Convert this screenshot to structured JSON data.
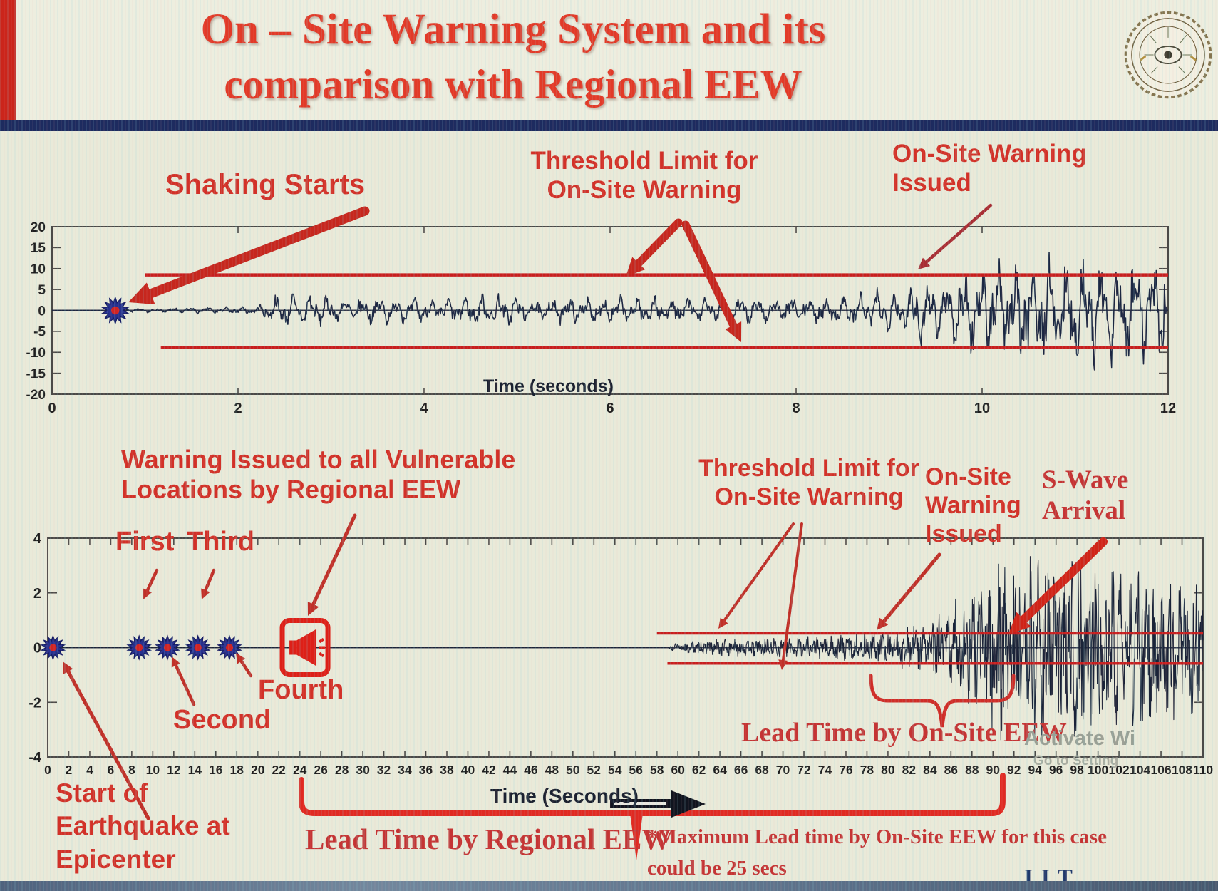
{
  "slide": {
    "title_line1": "On – Site Warning System and its",
    "title_line2": "comparison with Regional EEW",
    "brand": "I I T ROORKEE",
    "brand_squares": [
      "#1f3864",
      "#2e75b6",
      "#1e7145"
    ],
    "watermark_line1": "Activate Wi",
    "watermark_line2": "Go to Setting",
    "colors": {
      "title_red": "#e23a28",
      "annotation_red": "#d23128",
      "serif_red": "#c53434",
      "threshold_red": "#c81e1e",
      "waveform_navy": "#1c2742",
      "navy_bar": "#1d2b5f",
      "brand_navy": "#203a6d"
    }
  },
  "labels": {
    "shaking_starts": "Shaking Starts",
    "threshold_top_l1": "Threshold Limit for",
    "threshold_top_l2": "On-Site Warning",
    "onsite_top_l1": "On-Site Warning",
    "onsite_top_l2": "Issued",
    "time_top": "Time (seconds)",
    "warning_vuln_l1": "Warning Issued to all Vulnerable",
    "warning_vuln_l2": "Locations by Regional EEW",
    "first": "First",
    "second": "Second",
    "third": "Third",
    "fourth": "Fourth",
    "threshold_bot_l1": "Threshold Limit for",
    "threshold_bot_l2": "On-Site Warning",
    "onsite_bot_l1": "On-Site",
    "onsite_bot_l2": "Warning",
    "onsite_bot_l3": "Issued",
    "swave_l1": "S-Wave",
    "swave_l2": "Arrival",
    "lead_onsite": "Lead Time by On-Site EEW",
    "lead_regional": "Lead Time by Regional EEW",
    "start_epi_l1": "Start of",
    "start_epi_l2": "Earthquake at",
    "start_epi_l3": "Epicenter",
    "max_lead_l1": "*Maximum Lead time by On-Site EEW for this case",
    "max_lead_l2": "could be 25 secs",
    "time_bot": "Time (Seconds)"
  },
  "chart_data": [
    {
      "type": "line",
      "name": "onsite-seismogram",
      "xlabel": "Time (seconds)",
      "x_range": [
        0,
        12
      ],
      "x_ticks": [
        0,
        2,
        4,
        6,
        8,
        10,
        12
      ],
      "y_range": [
        -20,
        20
      ],
      "y_ticks": [
        20,
        15,
        10,
        5,
        0,
        -5,
        -10,
        -15,
        -20
      ],
      "grid": false,
      "threshold_upper": 8.5,
      "threshold_lower": -8.9,
      "threshold_start_t_upper": 1.0,
      "threshold_start_t_lower": 1.17,
      "shaking_start_t": 0.68,
      "warning_issued_t": 9.3,
      "series": [
        {
          "name": "ground-acceleration",
          "amplitude_envelope": [
            [
              0,
              0
            ],
            [
              0.75,
              0
            ],
            [
              0.8,
              0.5
            ],
            [
              1.5,
              0.8
            ],
            [
              2.2,
              1.0
            ],
            [
              2.4,
              3.8
            ],
            [
              2.7,
              4.6
            ],
            [
              3.1,
              3.2
            ],
            [
              3.6,
              3.4
            ],
            [
              4.2,
              3.0
            ],
            [
              4.7,
              4.4
            ],
            [
              5.2,
              3.2
            ],
            [
              5.8,
              3.6
            ],
            [
              6.4,
              3.8
            ],
            [
              7.0,
              3.2
            ],
            [
              7.6,
              3.4
            ],
            [
              8.2,
              3.6
            ],
            [
              8.7,
              4.5
            ],
            [
              9.1,
              6.0
            ],
            [
              9.35,
              8.8
            ],
            [
              9.6,
              7.5
            ],
            [
              9.9,
              11.0
            ],
            [
              10.3,
              13.0
            ],
            [
              10.6,
              15.5
            ],
            [
              10.9,
              12.0
            ],
            [
              11.2,
              14.5
            ],
            [
              11.5,
              13.0
            ],
            [
              11.8,
              15.0
            ],
            [
              12,
              13.0
            ]
          ]
        }
      ]
    },
    {
      "type": "line",
      "name": "regional-vs-onsite-seismogram",
      "xlabel": "Time (Seconds)",
      "x_range": [
        0,
        110
      ],
      "x_ticks": [
        0,
        2,
        4,
        6,
        8,
        10,
        12,
        14,
        16,
        18,
        20,
        22,
        24,
        26,
        28,
        30,
        32,
        34,
        36,
        38,
        40,
        42,
        44,
        46,
        48,
        50,
        52,
        54,
        56,
        58,
        60,
        62,
        64,
        66,
        68,
        70,
        72,
        74,
        76,
        78,
        80,
        82,
        84,
        86,
        88,
        90,
        92,
        94,
        96,
        98,
        100,
        102,
        104,
        106,
        108,
        110
      ],
      "y_range": [
        -4,
        4
      ],
      "y_ticks": [
        4,
        2,
        0,
        -2,
        -4
      ],
      "grid": false,
      "threshold_upper": 0.52,
      "threshold_lower": -0.58,
      "threshold_start_t_upper": 58.0,
      "threshold_start_t_lower": 59.0,
      "epicenter_t": 0.5,
      "p_wave_report_ts": [
        8.7,
        11.4,
        14.3,
        17.3
      ],
      "regional_warning_t": 24.5,
      "wave_start_t": 59.3,
      "onsite_warning_t": 80,
      "s_wave_arrival_t": 93,
      "lead_time_regional_span": [
        24,
        92.5
      ],
      "lead_time_onsite_span": [
        80,
        92.5
      ],
      "max_lead_time_onsite_secs": 25,
      "series": [
        {
          "name": "ground-acceleration",
          "amplitude_envelope": [
            [
              0,
              0
            ],
            [
              59,
              0
            ],
            [
              59.5,
              0.12
            ],
            [
              61,
              0.22
            ],
            [
              64,
              0.3
            ],
            [
              68,
              0.32
            ],
            [
              72,
              0.38
            ],
            [
              76,
              0.45
            ],
            [
              79,
              0.5
            ],
            [
              81,
              0.65
            ],
            [
              83,
              0.8
            ],
            [
              85,
              1.1
            ],
            [
              86.5,
              1.6
            ],
            [
              88,
              1.9
            ],
            [
              89.5,
              2.6
            ],
            [
              90.5,
              3.3
            ],
            [
              91.5,
              2.6
            ],
            [
              92.5,
              2.9
            ],
            [
              94,
              3.2
            ],
            [
              96,
              3.0
            ],
            [
              98,
              3.1
            ],
            [
              100,
              2.9
            ],
            [
              102,
              2.6
            ],
            [
              104,
              2.7
            ],
            [
              106,
              2.4
            ],
            [
              108,
              2.5
            ],
            [
              110,
              2.2
            ]
          ]
        }
      ]
    }
  ]
}
